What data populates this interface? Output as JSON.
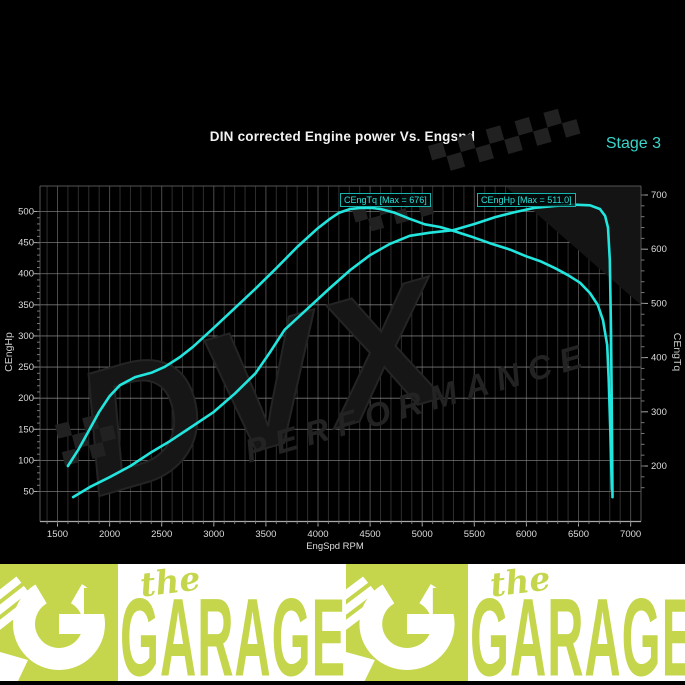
{
  "header": {
    "title": "DIN corrected Engine power Vs. Engspd",
    "stage": "Stage 3"
  },
  "watermark": {
    "brand": "DVX",
    "word": "PERFORMANCE"
  },
  "chart_data": {
    "type": "line",
    "title": "DIN corrected Engine power Vs. Engspd",
    "xlabel": "EngSpd RPM",
    "x_ticks": [
      1500,
      2000,
      2500,
      3000,
      3500,
      4000,
      4500,
      5000,
      5500,
      6000,
      6500,
      7000
    ],
    "x_range": [
      1330,
      7100
    ],
    "grid": true,
    "axes": {
      "left": {
        "label": "CEngHp",
        "ticks": [
          50,
          100,
          150,
          200,
          250,
          300,
          350,
          400,
          450,
          500
        ]
      },
      "right": {
        "label": "CEngTq",
        "ticks": [
          200,
          300,
          400,
          500,
          600,
          700
        ]
      }
    },
    "colors": {
      "line": "#22e6de",
      "grid_minor": "#2e2e2e",
      "grid_major": "#4a4a4a",
      "grid_horizontal": "#8a8a8a",
      "stage_accent": "#38d6cb"
    },
    "series": [
      {
        "name": "CEngHp",
        "axis": "left",
        "max": 511.0,
        "annotation": "CEngHp [Max = 511.0]",
        "points": [
          [
            1650,
            41
          ],
          [
            1810,
            57
          ],
          [
            2000,
            73
          ],
          [
            2200,
            91
          ],
          [
            2390,
            112
          ],
          [
            2580,
            131
          ],
          [
            2770,
            152
          ],
          [
            3000,
            178
          ],
          [
            3200,
            207
          ],
          [
            3400,
            240
          ],
          [
            3540,
            274
          ],
          [
            3680,
            310
          ],
          [
            3920,
            347
          ],
          [
            4115,
            377
          ],
          [
            4310,
            406
          ],
          [
            4500,
            430
          ],
          [
            4690,
            448
          ],
          [
            4880,
            461
          ],
          [
            5075,
            466
          ],
          [
            5295,
            470
          ],
          [
            5505,
            480
          ],
          [
            5700,
            491
          ],
          [
            5890,
            499
          ],
          [
            6080,
            506
          ],
          [
            6275,
            509
          ],
          [
            6465,
            511
          ],
          [
            6610,
            510
          ],
          [
            6705,
            504
          ],
          [
            6755,
            493
          ],
          [
            6783,
            474
          ],
          [
            6800,
            422
          ],
          [
            6812,
            310
          ],
          [
            6820,
            165
          ],
          [
            6826,
            41
          ]
        ]
      },
      {
        "name": "CEngTq",
        "axis": "right",
        "max": 676,
        "annotation": "CEngTq [Max = 676]",
        "points": [
          [
            1600,
            200
          ],
          [
            1700,
            230
          ],
          [
            1800,
            265
          ],
          [
            1900,
            300
          ],
          [
            2000,
            329
          ],
          [
            2100,
            349
          ],
          [
            2245,
            364
          ],
          [
            2400,
            372
          ],
          [
            2530,
            383
          ],
          [
            2675,
            401
          ],
          [
            2800,
            420
          ],
          [
            3000,
            455
          ],
          [
            3200,
            491
          ],
          [
            3405,
            528
          ],
          [
            3600,
            565
          ],
          [
            3800,
            604
          ],
          [
            4000,
            639
          ],
          [
            4115,
            656
          ],
          [
            4200,
            667
          ],
          [
            4305,
            674
          ],
          [
            4400,
            676
          ],
          [
            4520,
            676
          ],
          [
            4605,
            674
          ],
          [
            4740,
            667
          ],
          [
            4880,
            656
          ],
          [
            5025,
            646
          ],
          [
            5170,
            641
          ],
          [
            5295,
            634
          ],
          [
            5460,
            624
          ],
          [
            5650,
            611
          ],
          [
            5845,
            599
          ],
          [
            5995,
            587
          ],
          [
            6130,
            578
          ],
          [
            6275,
            565
          ],
          [
            6400,
            552
          ],
          [
            6515,
            538
          ],
          [
            6610,
            519
          ],
          [
            6685,
            497
          ],
          [
            6735,
            469
          ],
          [
            6775,
            423
          ],
          [
            6790,
            359
          ],
          [
            6805,
            266
          ],
          [
            6820,
            156
          ]
        ]
      }
    ]
  },
  "footer": {
    "the": "the",
    "garage": "GARAGE",
    "colors": {
      "lime": "#c5d64d",
      "panel": "#ffffff"
    }
  }
}
